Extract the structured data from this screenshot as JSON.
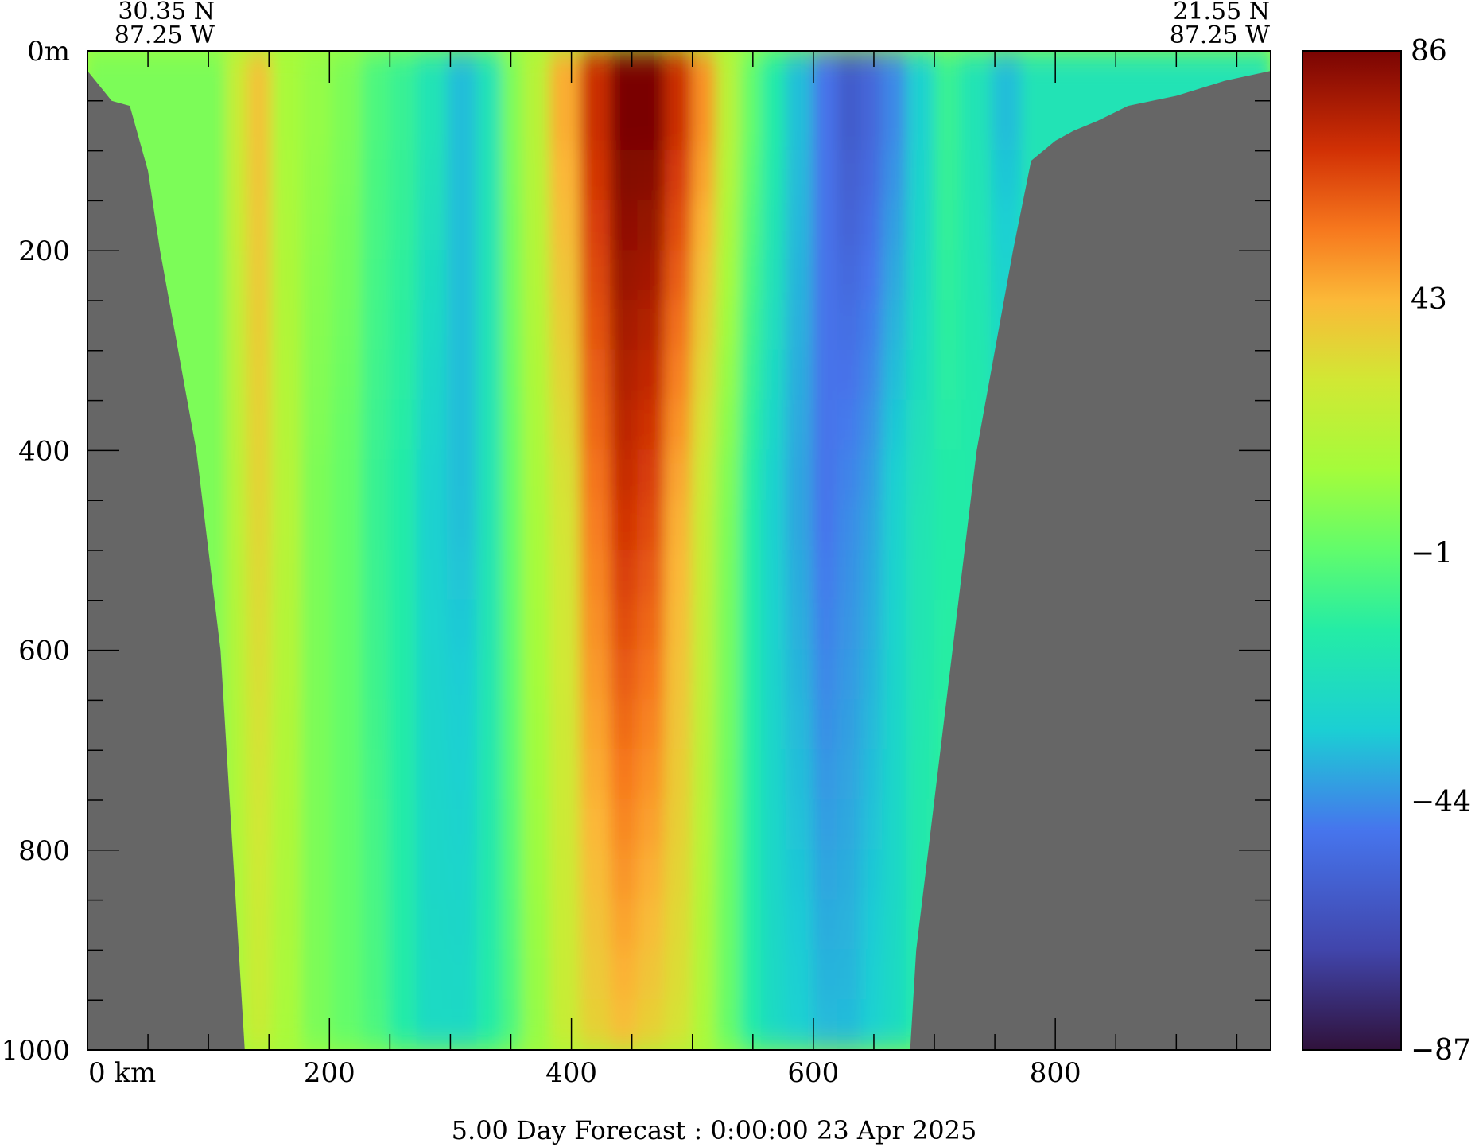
{
  "chart_data": {
    "type": "heatmap",
    "title": "",
    "caption": "5.00 Day Forecast :  0:00:00  23 Apr 2025",
    "start_point": {
      "lat": "30.35 N",
      "lon": "87.25 W"
    },
    "end_point": {
      "lat": "21.55 N",
      "lon": "87.25 W"
    },
    "xlabel": "",
    "ylabel": "",
    "xlim": [
      0,
      978
    ],
    "ylim": [
      1000,
      0
    ],
    "x_ticks": [
      {
        "value": 0,
        "label": "0 km"
      },
      {
        "value": 200,
        "label": "200"
      },
      {
        "value": 400,
        "label": "400"
      },
      {
        "value": 600,
        "label": "600"
      },
      {
        "value": 800,
        "label": "800"
      }
    ],
    "y_ticks": [
      {
        "value": 0,
        "label": "0m"
      },
      {
        "value": 200,
        "label": "200"
      },
      {
        "value": 400,
        "label": "400"
      },
      {
        "value": 600,
        "label": "600"
      },
      {
        "value": 800,
        "label": "800"
      },
      {
        "value": 1000,
        "label": "1000"
      }
    ],
    "colorbar": {
      "min": -87,
      "max": 86,
      "tick_labels": [
        "86",
        "43",
        "−1",
        "−44",
        "−87"
      ],
      "tick_values": [
        86,
        43,
        -1,
        -44,
        -87
      ]
    },
    "velocity_columns": {
      "x_km": [
        105,
        125,
        140,
        165,
        190,
        215,
        240,
        260,
        285,
        310,
        335,
        350,
        370,
        395,
        420,
        445,
        465,
        490,
        510,
        530,
        550,
        565,
        590,
        610,
        630,
        650,
        665,
        690,
        710,
        735,
        760,
        785
      ],
      "surface": [
        5,
        25,
        40,
        15,
        10,
        5,
        -5,
        -10,
        -20,
        -35,
        -20,
        5,
        20,
        45,
        70,
        86,
        86,
        70,
        50,
        20,
        0,
        -15,
        -35,
        -50,
        -60,
        -55,
        -45,
        -30,
        -10,
        -20,
        -35,
        -20
      ],
      "mid": [
        5,
        20,
        35,
        20,
        5,
        0,
        -10,
        -15,
        -30,
        -35,
        -20,
        0,
        15,
        30,
        55,
        70,
        65,
        45,
        25,
        5,
        -15,
        -30,
        -40,
        -50,
        -45,
        -40,
        -30,
        -20,
        -15,
        -15,
        -20,
        -20
      ],
      "deep": [
        10,
        15,
        25,
        15,
        5,
        0,
        -5,
        -15,
        -25,
        -25,
        -15,
        -5,
        10,
        25,
        35,
        40,
        35,
        30,
        15,
        0,
        -15,
        -25,
        -30,
        -35,
        -35,
        -30,
        -25,
        -15,
        -10,
        -10,
        -10,
        -10
      ]
    },
    "bathymetry": {
      "left_wall": [
        [
          0,
          20
        ],
        [
          20,
          50
        ],
        [
          35,
          55
        ],
        [
          50,
          120
        ],
        [
          60,
          200
        ],
        [
          75,
          300
        ],
        [
          90,
          400
        ],
        [
          100,
          500
        ],
        [
          110,
          600
        ],
        [
          115,
          700
        ],
        [
          120,
          800
        ],
        [
          125,
          900
        ],
        [
          130,
          1000
        ]
      ],
      "right_wall": [
        [
          680,
          1000
        ],
        [
          685,
          900
        ],
        [
          695,
          800
        ],
        [
          705,
          700
        ],
        [
          715,
          600
        ],
        [
          725,
          500
        ],
        [
          735,
          400
        ],
        [
          750,
          300
        ],
        [
          765,
          200
        ],
        [
          780,
          110
        ],
        [
          800,
          90
        ],
        [
          815,
          80
        ],
        [
          835,
          70
        ],
        [
          860,
          55
        ],
        [
          900,
          45
        ],
        [
          940,
          30
        ],
        [
          978,
          20
        ]
      ]
    },
    "grid": false,
    "legend": "colorbar-right"
  }
}
